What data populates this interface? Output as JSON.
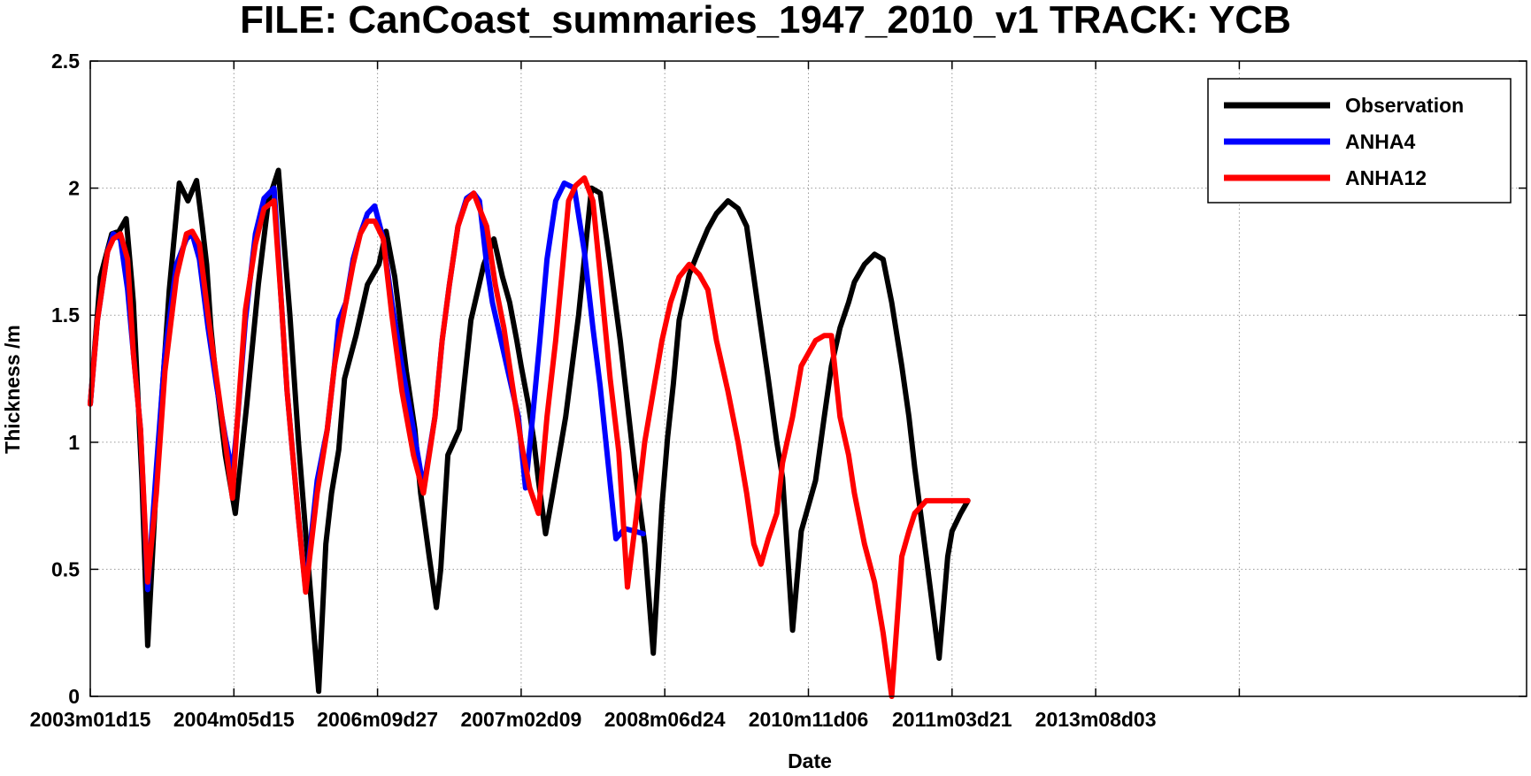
{
  "chart_data": {
    "type": "line",
    "title": "FILE: CanCoast_summaries_1947_2010_v1 TRACK: YCB",
    "xlabel": "Date",
    "ylabel": "Thickness /m",
    "xlim": [
      0,
      10.0
    ],
    "ylim": [
      0,
      2.5
    ],
    "grid": true,
    "legend_position": "top-right",
    "x_ticks": [
      0,
      1,
      2,
      3,
      4,
      5,
      6,
      7,
      8
    ],
    "x_tick_labels": [
      "2003m01d15",
      "2004m05d15",
      "2006m09d27",
      "2007m02d09",
      "2008m06d24",
      "2010m11d06",
      "2011m03d21",
      "2013m08d03",
      ""
    ],
    "y_ticks": [
      0,
      0.5,
      1,
      1.5,
      2,
      2.5
    ],
    "y_tick_labels": [
      "0",
      "0.5",
      "1",
      "1.5",
      "2",
      "2.5"
    ],
    "series": [
      {
        "name": "Observation",
        "color": "#000000",
        "x": [
          0.0,
          0.07,
          0.15,
          0.2,
          0.25,
          0.29,
          0.3,
          0.33,
          0.36,
          0.4,
          0.47,
          0.55,
          0.62,
          0.68,
          0.74,
          0.78,
          0.81,
          0.84,
          0.87,
          0.94,
          1.01,
          1.09,
          1.17,
          1.24,
          1.31,
          1.34,
          1.39,
          1.45,
          1.52,
          1.59,
          1.64,
          1.68,
          1.73,
          1.77,
          1.85,
          1.93,
          2.01,
          2.06,
          2.12,
          2.17,
          2.2,
          2.26,
          2.3,
          2.36,
          2.41,
          2.44,
          2.49,
          2.57,
          2.65,
          2.74,
          2.81,
          2.87,
          2.92,
          2.97,
          3.0,
          3.05,
          3.09,
          3.12,
          3.17,
          3.22,
          3.31,
          3.4,
          3.49,
          3.55,
          3.62,
          3.69,
          3.75,
          3.79,
          3.86,
          3.92,
          3.98,
          4.02,
          4.06,
          4.1,
          4.17,
          4.24,
          4.3,
          4.36,
          4.44,
          4.51,
          4.57,
          4.62,
          4.67,
          4.72,
          4.78,
          4.82,
          4.89,
          4.95,
          5.05,
          5.11,
          5.16,
          5.22,
          5.28,
          5.32,
          5.39,
          5.46,
          5.52,
          5.58,
          5.65,
          5.7,
          5.74,
          5.82,
          5.91,
          5.97,
          6.0,
          6.06,
          6.11
        ],
        "y": [
          1.15,
          1.65,
          1.82,
          1.83,
          1.88,
          1.62,
          1.55,
          1.2,
          0.85,
          0.2,
          0.95,
          1.6,
          2.02,
          1.95,
          2.03,
          1.85,
          1.7,
          1.45,
          1.28,
          0.95,
          0.72,
          1.15,
          1.62,
          1.95,
          2.07,
          1.85,
          1.5,
          1.0,
          0.5,
          0.02,
          0.6,
          0.8,
          0.97,
          1.25,
          1.42,
          1.62,
          1.7,
          1.83,
          1.65,
          1.42,
          1.28,
          1.05,
          0.8,
          0.55,
          0.35,
          0.5,
          0.95,
          1.05,
          1.48,
          1.7,
          1.8,
          1.65,
          1.55,
          1.4,
          1.3,
          1.15,
          1.0,
          0.85,
          0.64,
          0.8,
          1.1,
          1.5,
          2.0,
          1.98,
          1.7,
          1.4,
          1.1,
          0.9,
          0.6,
          0.17,
          0.75,
          1.02,
          1.23,
          1.48,
          1.66,
          1.76,
          1.84,
          1.9,
          1.95,
          1.92,
          1.85,
          1.65,
          1.45,
          1.25,
          1.0,
          0.86,
          0.26,
          0.65,
          0.85,
          1.1,
          1.3,
          1.45,
          1.55,
          1.63,
          1.7,
          1.74,
          1.72,
          1.55,
          1.3,
          1.1,
          0.9,
          0.55,
          0.15,
          0.55,
          0.65,
          0.72,
          0.77
        ]
      },
      {
        "name": "ANHA4",
        "color": "#0000ff",
        "x": [
          0.0,
          0.05,
          0.12,
          0.16,
          0.21,
          0.26,
          0.3,
          0.35,
          0.4,
          0.46,
          0.52,
          0.6,
          0.67,
          0.71,
          0.76,
          0.82,
          0.88,
          0.94,
          0.99,
          1.02,
          1.08,
          1.15,
          1.21,
          1.28,
          1.33,
          1.37,
          1.45,
          1.5,
          1.58,
          1.65,
          1.7,
          1.73,
          1.78,
          1.83,
          1.88,
          1.93,
          1.98,
          2.04,
          2.1,
          2.17,
          2.25,
          2.32,
          2.4,
          2.45,
          2.5,
          2.56,
          2.62,
          2.67,
          2.71,
          2.76,
          2.8,
          2.86,
          2.92,
          2.98,
          3.03,
          3.08,
          3.13,
          3.18,
          3.24,
          3.3,
          3.37,
          3.44,
          3.5,
          3.55,
          3.59,
          3.66,
          3.72,
          3.79,
          3.85
        ],
        "y": [
          1.15,
          1.48,
          1.75,
          1.82,
          1.8,
          1.6,
          1.35,
          1.05,
          0.42,
          0.9,
          1.35,
          1.7,
          1.8,
          1.82,
          1.72,
          1.45,
          1.22,
          1.02,
          0.88,
          1.05,
          1.48,
          1.82,
          1.96,
          2.0,
          1.55,
          1.2,
          0.7,
          0.42,
          0.85,
          1.05,
          1.3,
          1.48,
          1.55,
          1.72,
          1.82,
          1.9,
          1.93,
          1.8,
          1.55,
          1.3,
          1.05,
          0.82,
          1.1,
          1.4,
          1.62,
          1.85,
          1.96,
          1.98,
          1.95,
          1.7,
          1.55,
          1.4,
          1.25,
          1.1,
          0.82,
          1.1,
          1.4,
          1.72,
          1.95,
          2.02,
          2.0,
          1.75,
          1.45,
          1.22,
          1.0,
          0.62,
          0.66,
          0.65,
          0.64
        ]
      },
      {
        "name": "ANHA12",
        "color": "#ff0000",
        "x": [
          0.0,
          0.05,
          0.12,
          0.16,
          0.21,
          0.26,
          0.3,
          0.35,
          0.4,
          0.46,
          0.52,
          0.6,
          0.67,
          0.71,
          0.76,
          0.82,
          0.88,
          0.94,
          0.99,
          1.02,
          1.08,
          1.15,
          1.21,
          1.28,
          1.33,
          1.37,
          1.45,
          1.5,
          1.58,
          1.65,
          1.7,
          1.73,
          1.78,
          1.83,
          1.88,
          1.93,
          1.98,
          2.04,
          2.1,
          2.17,
          2.25,
          2.32,
          2.4,
          2.45,
          2.5,
          2.56,
          2.62,
          2.67,
          2.71,
          2.76,
          2.82,
          2.88,
          2.94,
          3.0,
          3.06,
          3.12,
          3.18,
          3.24,
          3.29,
          3.33,
          3.38,
          3.44,
          3.5,
          3.56,
          3.62,
          3.68,
          3.74,
          3.8,
          3.86,
          3.92,
          3.98,
          4.04,
          4.1,
          4.17,
          4.24,
          4.3,
          4.36,
          4.44,
          4.51,
          4.57,
          4.62,
          4.67,
          4.72,
          4.78,
          4.82,
          4.89,
          4.95,
          5.05,
          5.11,
          5.16,
          5.22,
          5.28,
          5.32,
          5.39,
          5.46,
          5.52,
          5.58,
          5.65,
          5.7,
          5.74,
          5.82,
          5.91,
          5.97,
          6.0,
          6.06,
          6.11
        ],
        "y": [
          1.15,
          1.48,
          1.75,
          1.8,
          1.82,
          1.72,
          1.35,
          1.05,
          0.45,
          0.8,
          1.28,
          1.65,
          1.82,
          1.83,
          1.78,
          1.5,
          1.25,
          1.0,
          0.78,
          1.05,
          1.52,
          1.78,
          1.92,
          1.95,
          1.55,
          1.2,
          0.7,
          0.41,
          0.8,
          1.05,
          1.3,
          1.4,
          1.55,
          1.7,
          1.82,
          1.87,
          1.87,
          1.8,
          1.5,
          1.2,
          0.95,
          0.8,
          1.1,
          1.4,
          1.62,
          1.85,
          1.95,
          1.98,
          1.92,
          1.85,
          1.62,
          1.45,
          1.22,
          1.0,
          0.82,
          0.72,
          1.1,
          1.4,
          1.7,
          1.95,
          2.01,
          2.04,
          1.95,
          1.6,
          1.25,
          0.96,
          0.43,
          0.7,
          1.0,
          1.2,
          1.4,
          1.55,
          1.65,
          1.7,
          1.66,
          1.6,
          1.4,
          1.2,
          1.0,
          0.8,
          0.6,
          0.52,
          0.62,
          0.72,
          0.92,
          1.1,
          1.3,
          1.4,
          1.42,
          1.42,
          1.1,
          0.95,
          0.8,
          0.6,
          0.45,
          0.25,
          0.0,
          0.55,
          0.65,
          0.72,
          0.77,
          0.77,
          0.77,
          0.77,
          0.77,
          0.77
        ]
      }
    ]
  }
}
